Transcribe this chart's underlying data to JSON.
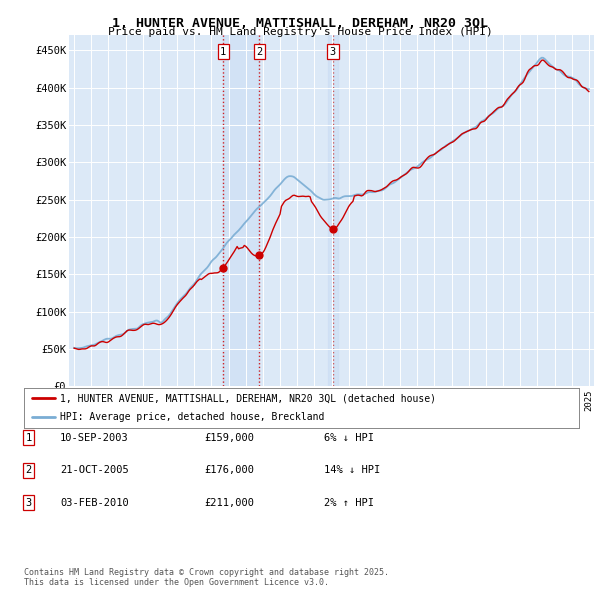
{
  "title": "1, HUNTER AVENUE, MATTISHALL, DEREHAM, NR20 3QL",
  "subtitle": "Price paid vs. HM Land Registry's House Price Index (HPI)",
  "bg_color": "#dce9f7",
  "sale_color": "#cc0000",
  "hpi_color": "#7aadd4",
  "vline_color_12": "#cc0000",
  "vline_color_3": "#cc4444",
  "ytick_labels": [
    "£0",
    "£50K",
    "£100K",
    "£150K",
    "£200K",
    "£250K",
    "£300K",
    "£350K",
    "£400K",
    "£450K"
  ],
  "yticks": [
    0,
    50000,
    100000,
    150000,
    200000,
    250000,
    300000,
    350000,
    400000,
    450000
  ],
  "xmin": 1994.7,
  "xmax": 2025.3,
  "ymin": 0,
  "ymax": 470000,
  "sale_dates": [
    2003.69,
    2005.8,
    2010.08
  ],
  "sale_prices": [
    159000,
    176000,
    211000
  ],
  "sale_labels": [
    "1",
    "2",
    "3"
  ],
  "legend_sale_label": "1, HUNTER AVENUE, MATTISHALL, DEREHAM, NR20 3QL (detached house)",
  "legend_hpi_label": "HPI: Average price, detached house, Breckland",
  "table_rows": [
    [
      "1",
      "10-SEP-2003",
      "£159,000",
      "6% ↓ HPI"
    ],
    [
      "2",
      "21-OCT-2005",
      "£176,000",
      "14% ↓ HPI"
    ],
    [
      "3",
      "03-FEB-2010",
      "£211,000",
      "2% ↑ HPI"
    ]
  ],
  "footer": "Contains HM Land Registry data © Crown copyright and database right 2025.\nThis data is licensed under the Open Government Licence v3.0."
}
